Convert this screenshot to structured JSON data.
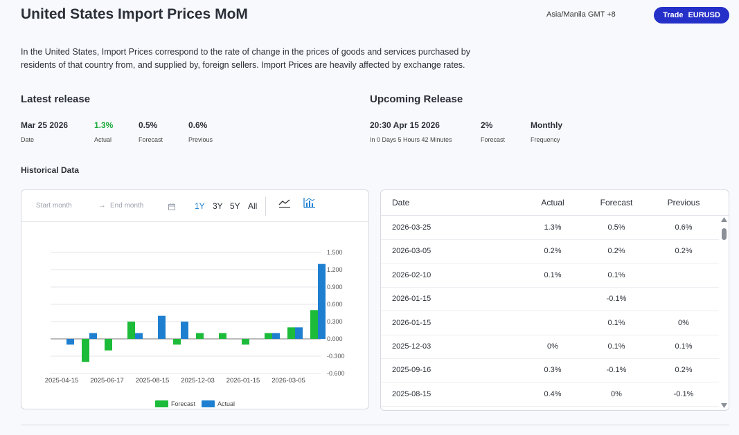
{
  "header": {
    "title": "United States Import Prices MoM",
    "timezone": "Asia/Manila GMT +8",
    "trade_label": "Trade",
    "trade_pair": "EURUSD"
  },
  "description": "In the United States, Import Prices correspond to the rate of change in the prices of goods and services purchased by residents of that country from, and supplied by, foreign sellers. Import Prices are heavily affected by exchange rates.",
  "latest": {
    "heading": "Latest release",
    "date": "Mar 25 2026",
    "date_label": "Date",
    "actual": "1.3%",
    "actual_label": "Actual",
    "forecast": "0.5%",
    "forecast_label": "Forecast",
    "previous": "0.6%",
    "previous_label": "Previous"
  },
  "upcoming": {
    "heading": "Upcoming Release",
    "datetime": "20:30 Apr 15 2026",
    "countdown": "In 0 Days 5 Hours 42 Minutes",
    "forecast": "2%",
    "forecast_label": "Forecast",
    "frequency": "Monthly",
    "frequency_label": "Frequency"
  },
  "historical": {
    "heading": "Historical Data",
    "start_placeholder": "Start month",
    "end_placeholder": "End month",
    "periods": [
      "1Y",
      "3Y",
      "5Y",
      "All"
    ],
    "active_period": "1Y"
  },
  "colors": {
    "forecast": "#1dbb3a",
    "actual": "#1e7fd0",
    "accent": "#2530c8"
  },
  "chart_data": {
    "type": "bar",
    "x_tick_labels": [
      "2025-04-15",
      "2025-06-17",
      "2025-08-15",
      "2025-12-03",
      "2026-01-15",
      "2026-03-05"
    ],
    "y_ticks": [
      "1.500",
      "1.200",
      "0.900",
      "0.600",
      "0.300",
      "0.000",
      "-0.300",
      "-0.600"
    ],
    "ylim": [
      -0.6,
      1.5
    ],
    "legend": [
      "Forecast",
      "Actual"
    ],
    "legend_position": "bottom",
    "series": [
      {
        "name": "Forecast",
        "values": [
          null,
          -0.4,
          -0.2,
          0.3,
          null,
          -0.1,
          0.1,
          0.1,
          -0.1,
          0.1,
          0.2,
          0.5
        ]
      },
      {
        "name": "Actual",
        "values": [
          -0.1,
          0.1,
          null,
          0.1,
          0.4,
          0.3,
          null,
          null,
          null,
          0.1,
          0.2,
          1.3
        ]
      }
    ]
  },
  "table": {
    "columns": [
      "Date",
      "Actual",
      "Forecast",
      "Previous"
    ],
    "rows": [
      {
        "date": "2026-03-25",
        "actual": "1.3%",
        "forecast": "0.5%",
        "previous": "0.6%",
        "tone": "green"
      },
      {
        "date": "2026-03-05",
        "actual": "0.2%",
        "forecast": "0.2%",
        "previous": "0.2%",
        "tone": ""
      },
      {
        "date": "2026-02-10",
        "actual": "0.1%",
        "forecast": "0.1%",
        "previous": "",
        "tone": ""
      },
      {
        "date": "2026-01-15",
        "actual": "",
        "forecast": "-0.1%",
        "previous": "",
        "tone": ""
      },
      {
        "date": "2026-01-15",
        "actual": "",
        "forecast": "0.1%",
        "previous": "0%",
        "tone": ""
      },
      {
        "date": "2025-12-03",
        "actual": "0%",
        "forecast": "0.1%",
        "previous": "0.1%",
        "tone": "red"
      },
      {
        "date": "2025-09-16",
        "actual": "0.3%",
        "forecast": "-0.1%",
        "previous": "0.2%",
        "tone": "green"
      },
      {
        "date": "2025-08-15",
        "actual": "0.4%",
        "forecast": "0%",
        "previous": "-0.1%",
        "tone": "green"
      }
    ]
  }
}
